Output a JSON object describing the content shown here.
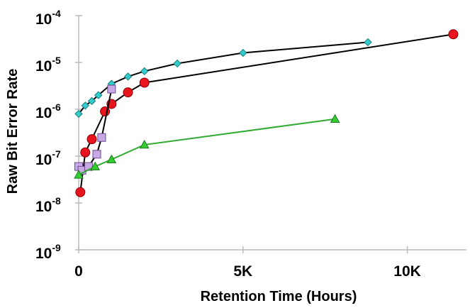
{
  "chart_data": {
    "type": "line",
    "title": "",
    "xlabel": "Retention Time (Hours)",
    "ylabel": "Raw Bit Error Rate",
    "xlim": [
      0,
      11800
    ],
    "ylim": [
      1e-09,
      0.0001
    ],
    "y_scale": "log",
    "grid": false,
    "legend": "none",
    "x_ticks": [
      {
        "value": 0,
        "label": "0"
      },
      {
        "value": 5000,
        "label": "5K"
      },
      {
        "value": 10000,
        "label": "10K"
      }
    ],
    "y_ticks": [
      {
        "value": 0.0001,
        "base": "10",
        "exp": "-4"
      },
      {
        "value": 1e-05,
        "base": "10",
        "exp": "-5"
      },
      {
        "value": 1e-06,
        "base": "10",
        "exp": "-6"
      },
      {
        "value": 1e-07,
        "base": "10",
        "exp": "-7"
      },
      {
        "value": 1e-08,
        "base": "10",
        "exp": "-8"
      },
      {
        "value": 1e-09,
        "base": "10",
        "exp": "-9"
      }
    ],
    "series": [
      {
        "marker": "diamond",
        "color": "#33cccc",
        "line_color": "#000000",
        "x": [
          0,
          200,
          400,
          600,
          1000,
          1500,
          2000,
          3000,
          5000,
          8800
        ],
        "y": [
          8e-07,
          1.2e-06,
          1.5e-06,
          2e-06,
          3.5e-06,
          5e-06,
          6.5e-06,
          9.5e-06,
          1.6e-05,
          2.7e-05
        ]
      },
      {
        "marker": "circle",
        "color": "#e8141e",
        "line_color": "#000000",
        "x": [
          50,
          200,
          400,
          800,
          1000,
          1500,
          2000,
          11400
        ],
        "y": [
          1.7e-08,
          1.2e-07,
          2.3e-07,
          9e-07,
          1.3e-06,
          2.3e-06,
          3.7e-06,
          4e-05
        ]
      },
      {
        "marker": "square",
        "color": "#c9a8e6",
        "line_color": "#000000",
        "x": [
          0,
          100,
          300,
          550,
          700,
          1000
        ],
        "y": [
          6e-08,
          5e-08,
          6e-08,
          1.1e-07,
          2.5e-07,
          2.7e-06
        ]
      },
      {
        "marker": "triangle",
        "color": "#33cc33",
        "line_color": "#33aa33",
        "x": [
          0,
          500,
          1000,
          2000,
          7800
        ],
        "y": [
          4e-08,
          6e-08,
          8.5e-08,
          1.75e-07,
          6.2e-07
        ]
      }
    ]
  }
}
